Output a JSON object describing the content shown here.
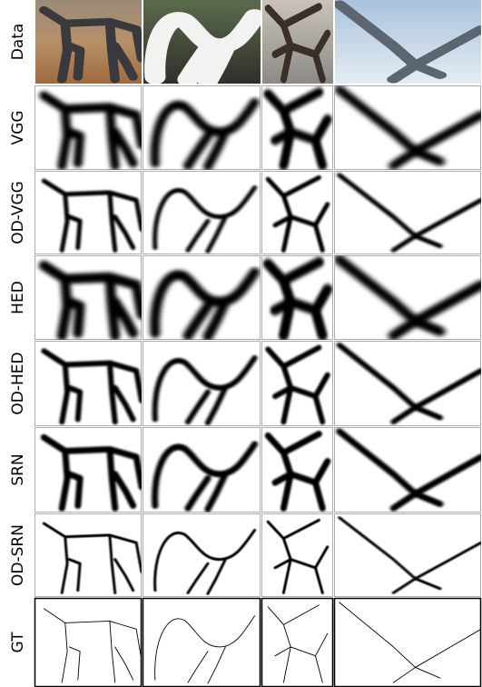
{
  "row_labels": [
    "Data",
    "VGG",
    "OD-VGG",
    "HED",
    "OD-HED",
    "SRN",
    "OD-SRN",
    "GT"
  ]
}
